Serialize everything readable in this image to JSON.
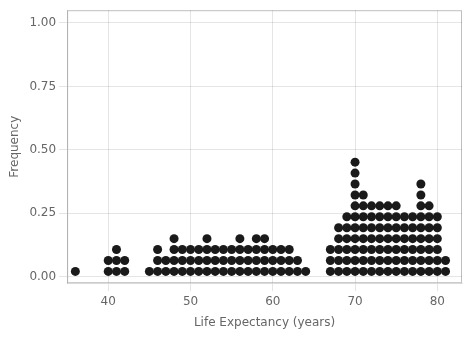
{
  "chart_data": {
    "type": "scatter",
    "xlabel": "Life Expectancy (years)",
    "ylabel": "Frequency",
    "color": "#1a1a1a",
    "marker": "circle",
    "grid": true,
    "xlim": [
      35,
      83
    ],
    "ylim": [
      -0.025,
      1.05
    ],
    "xticks": [
      40,
      50,
      60,
      70,
      80
    ],
    "yticks": [
      {
        "value": 0.0,
        "label": "0.00"
      },
      {
        "value": 0.25,
        "label": "0.25"
      },
      {
        "value": 0.5,
        "label": "0.50"
      },
      {
        "value": 0.75,
        "label": "0.75"
      },
      {
        "value": 1.0,
        "label": "1.00"
      }
    ],
    "x": [
      36,
      40,
      40,
      41,
      41,
      41,
      42,
      42,
      45,
      46,
      46,
      46,
      47,
      47,
      48,
      48,
      48,
      48,
      49,
      49,
      49,
      50,
      50,
      50,
      51,
      51,
      51,
      52,
      52,
      52,
      52,
      53,
      53,
      53,
      54,
      54,
      54,
      55,
      55,
      55,
      56,
      56,
      56,
      56,
      57,
      57,
      57,
      58,
      58,
      58,
      58,
      59,
      59,
      59,
      59,
      60,
      60,
      60,
      61,
      61,
      61,
      62,
      62,
      62,
      63,
      63,
      64,
      67,
      67,
      67,
      68,
      68,
      68,
      68,
      68,
      69,
      69,
      69,
      69,
      69,
      69,
      70,
      70,
      70,
      70,
      70,
      70,
      70,
      70,
      70,
      70,
      70,
      71,
      71,
      71,
      71,
      71,
      71,
      71,
      71,
      72,
      72,
      72,
      72,
      72,
      72,
      72,
      73,
      73,
      73,
      73,
      73,
      73,
      73,
      74,
      74,
      74,
      74,
      74,
      74,
      74,
      75,
      75,
      75,
      75,
      75,
      75,
      75,
      76,
      76,
      76,
      76,
      76,
      76,
      77,
      77,
      77,
      77,
      77,
      77,
      78,
      78,
      78,
      78,
      78,
      78,
      78,
      78,
      78,
      79,
      79,
      79,
      79,
      79,
      79,
      79,
      80,
      80,
      80,
      80,
      80,
      80,
      81,
      81
    ],
    "values": [
      0.0215,
      0.0215,
      0.0645,
      0.0215,
      0.0645,
      0.1075,
      0.0215,
      0.0645,
      0.0215,
      0.0215,
      0.0645,
      0.1075,
      0.0215,
      0.0645,
      0.0215,
      0.0645,
      0.1075,
      0.1505,
      0.0215,
      0.0645,
      0.1075,
      0.0215,
      0.0645,
      0.1075,
      0.0215,
      0.0645,
      0.1075,
      0.0215,
      0.0645,
      0.1075,
      0.1505,
      0.0215,
      0.0645,
      0.1075,
      0.0215,
      0.0645,
      0.1075,
      0.0215,
      0.0645,
      0.1075,
      0.0215,
      0.0645,
      0.1075,
      0.1505,
      0.0215,
      0.0645,
      0.1075,
      0.0215,
      0.0645,
      0.1075,
      0.1505,
      0.0215,
      0.0645,
      0.1075,
      0.1505,
      0.0215,
      0.0645,
      0.1075,
      0.0215,
      0.0645,
      0.1075,
      0.0215,
      0.0645,
      0.1075,
      0.0215,
      0.0645,
      0.0215,
      0.0215,
      0.0645,
      0.1075,
      0.0215,
      0.0645,
      0.1075,
      0.1505,
      0.1935,
      0.0215,
      0.0645,
      0.1075,
      0.1505,
      0.1935,
      0.2365,
      0.0215,
      0.0645,
      0.1075,
      0.1505,
      0.1935,
      0.2365,
      0.2795,
      0.3225,
      0.3655,
      0.4085,
      0.4515,
      0.0215,
      0.0645,
      0.1075,
      0.1505,
      0.1935,
      0.2365,
      0.2795,
      0.3225,
      0.0215,
      0.0645,
      0.1075,
      0.1505,
      0.1935,
      0.2365,
      0.2795,
      0.0215,
      0.0645,
      0.1075,
      0.1505,
      0.1935,
      0.2365,
      0.2795,
      0.0215,
      0.0645,
      0.1075,
      0.1505,
      0.1935,
      0.2365,
      0.2795,
      0.0215,
      0.0645,
      0.1075,
      0.1505,
      0.1935,
      0.2365,
      0.2795,
      0.0215,
      0.0645,
      0.1075,
      0.1505,
      0.1935,
      0.2365,
      0.0215,
      0.0645,
      0.1075,
      0.1505,
      0.1935,
      0.2365,
      0.0215,
      0.0645,
      0.1075,
      0.1505,
      0.1935,
      0.2365,
      0.2795,
      0.3225,
      0.3655,
      0.0215,
      0.0645,
      0.1075,
      0.1505,
      0.1935,
      0.2365,
      0.2795,
      0.0215,
      0.0645,
      0.1075,
      0.1505,
      0.1935,
      0.2365,
      0.0215,
      0.0645
    ]
  }
}
